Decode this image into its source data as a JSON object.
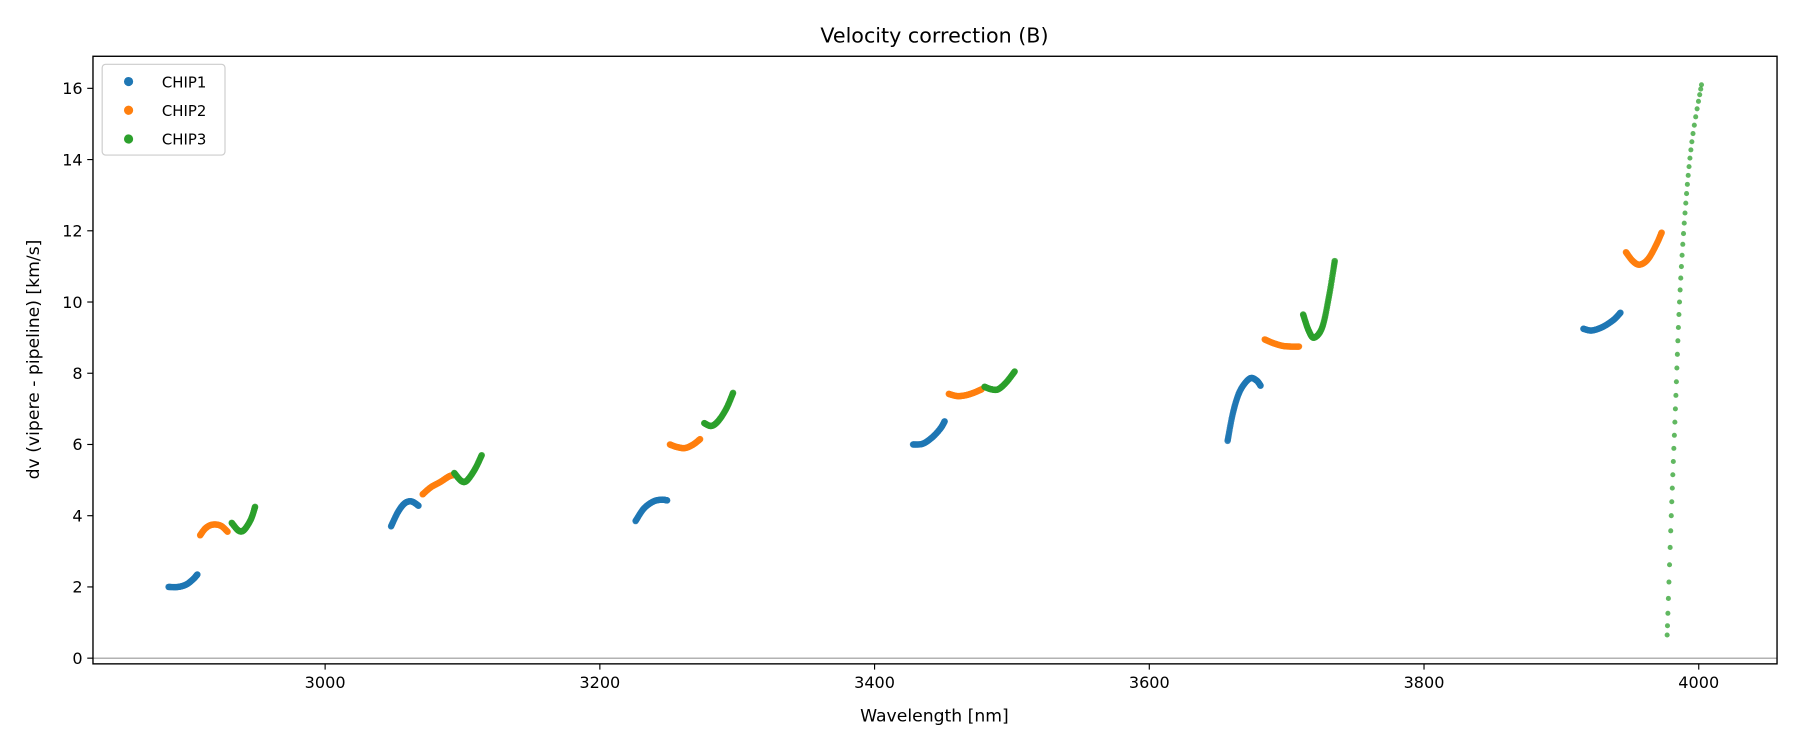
{
  "chart_data": {
    "type": "scatter",
    "title": "Velocity correction (B)",
    "xlabel": "Wavelength [nm]",
    "ylabel": "dv (vipere - pipeline) [km/s]",
    "xlim": [
      2831,
      4057
    ],
    "ylim": [
      -0.16,
      16.9
    ],
    "xticks": [
      3000,
      3200,
      3400,
      3600,
      3800,
      4000
    ],
    "yticks": [
      0,
      2,
      4,
      6,
      8,
      10,
      12,
      14,
      16
    ],
    "grid": false,
    "legend": "top-left",
    "hline": 0,
    "series": [
      {
        "name": "CHIP1",
        "color": "#1f77b4",
        "segments": [
          [
            [
              2886,
              2.0
            ],
            [
              2893,
              2.0
            ],
            [
              2899,
              2.07
            ],
            [
              2904,
              2.22
            ],
            [
              2907,
              2.35
            ]
          ],
          [
            [
              3048,
              3.7
            ],
            [
              3053,
              4.1
            ],
            [
              3058,
              4.35
            ],
            [
              3063,
              4.4
            ],
            [
              3068,
              4.28
            ]
          ],
          [
            [
              3226,
              3.85
            ],
            [
              3232,
              4.2
            ],
            [
              3239,
              4.4
            ],
            [
              3245,
              4.45
            ],
            [
              3249,
              4.43
            ]
          ],
          [
            [
              3428,
              6.0
            ],
            [
              3435,
              6.02
            ],
            [
              3442,
              6.2
            ],
            [
              3448,
              6.45
            ],
            [
              3451,
              6.65
            ]
          ],
          [
            [
              3657,
              6.1
            ],
            [
              3661,
              6.9
            ],
            [
              3666,
              7.5
            ],
            [
              3673,
              7.85
            ],
            [
              3678,
              7.8
            ],
            [
              3681,
              7.65
            ]
          ],
          [
            [
              3916,
              9.25
            ],
            [
              3922,
              9.2
            ],
            [
              3930,
              9.3
            ],
            [
              3938,
              9.5
            ],
            [
              3943,
              9.7
            ]
          ]
        ]
      },
      {
        "name": "CHIP2",
        "color": "#ff7f0e",
        "segments": [
          [
            [
              2909,
              3.45
            ],
            [
              2913,
              3.65
            ],
            [
              2918,
              3.75
            ],
            [
              2924,
              3.72
            ],
            [
              2929,
              3.55
            ]
          ],
          [
            [
              3071,
              4.6
            ],
            [
              3077,
              4.8
            ],
            [
              3084,
              4.95
            ],
            [
              3090,
              5.1
            ],
            [
              3094,
              5.15
            ]
          ],
          [
            [
              3251,
              6.0
            ],
            [
              3256,
              5.93
            ],
            [
              3262,
              5.9
            ],
            [
              3268,
              6.0
            ],
            [
              3273,
              6.15
            ]
          ],
          [
            [
              3454,
              7.42
            ],
            [
              3460,
              7.36
            ],
            [
              3466,
              7.38
            ],
            [
              3472,
              7.45
            ],
            [
              3478,
              7.55
            ]
          ],
          [
            [
              3684,
              8.95
            ],
            [
              3690,
              8.85
            ],
            [
              3697,
              8.77
            ],
            [
              3703,
              8.75
            ],
            [
              3709,
              8.75
            ]
          ],
          [
            [
              3947,
              11.4
            ],
            [
              3952,
              11.15
            ],
            [
              3957,
              11.05
            ],
            [
              3963,
              11.2
            ],
            [
              3969,
              11.6
            ],
            [
              3973,
              11.95
            ]
          ]
        ]
      },
      {
        "name": "CHIP3",
        "color": "#2ca02c",
        "segments": [
          [
            [
              2932,
              3.8
            ],
            [
              2937,
              3.58
            ],
            [
              2941,
              3.6
            ],
            [
              2946,
              3.9
            ],
            [
              2949,
              4.25
            ]
          ],
          [
            [
              3094,
              5.2
            ],
            [
              3099,
              4.98
            ],
            [
              3103,
              4.98
            ],
            [
              3109,
              5.3
            ],
            [
              3114,
              5.7
            ]
          ],
          [
            [
              3276,
              6.6
            ],
            [
              3281,
              6.52
            ],
            [
              3286,
              6.65
            ],
            [
              3292,
              7.0
            ],
            [
              3297,
              7.45
            ]
          ],
          [
            [
              3480,
              7.62
            ],
            [
              3485,
              7.55
            ],
            [
              3490,
              7.55
            ],
            [
              3496,
              7.75
            ],
            [
              3502,
              8.05
            ]
          ],
          [
            [
              3712,
              9.65
            ],
            [
              3716,
              9.2
            ],
            [
              3720,
              9.0
            ],
            [
              3726,
              9.3
            ],
            [
              3731,
              10.2
            ],
            [
              3735,
              11.15
            ]
          ],
          [
            [
              3977,
              0.65
            ],
            [
              3980,
              4.0
            ],
            [
              3983,
              7.0
            ],
            [
              3986,
              10.0
            ],
            [
              3990,
              12.5
            ],
            [
              3995,
              14.5
            ],
            [
              4002,
              16.1
            ]
          ]
        ]
      }
    ]
  }
}
